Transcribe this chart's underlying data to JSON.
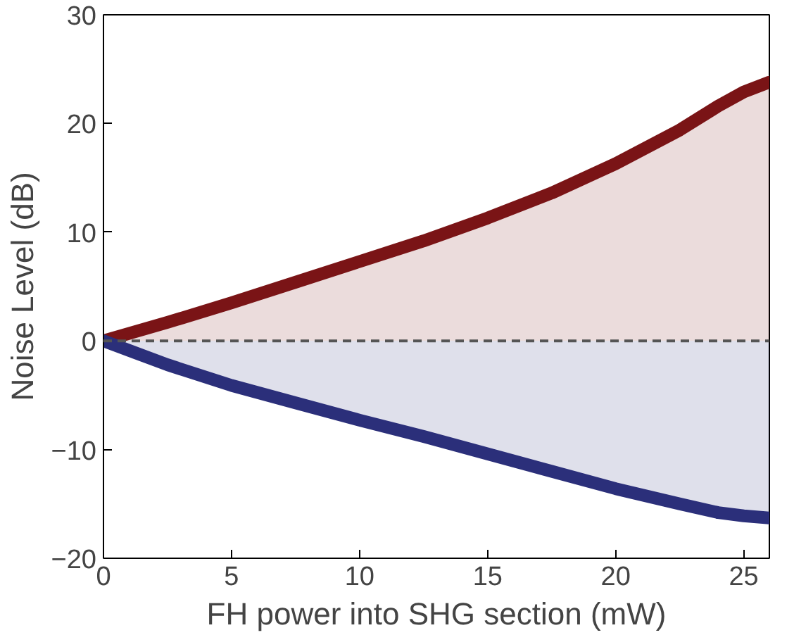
{
  "chart_data": {
    "type": "area",
    "xlabel": "FH power into SHG section (mW)",
    "ylabel": "Noise Level (dB)",
    "x": [
      0,
      2.5,
      5,
      7.5,
      10,
      12.5,
      15,
      17.5,
      20,
      22.5,
      24,
      25,
      26
    ],
    "series": [
      {
        "color": "#7a1416",
        "values": [
          0,
          1.7,
          3.5,
          5.4,
          7.3,
          9.2,
          11.3,
          13.6,
          16.3,
          19.4,
          21.6,
          22.9,
          23.8
        ]
      },
      {
        "color": "#2b2f7a",
        "values": [
          0,
          -2.2,
          -4.1,
          -5.7,
          -7.3,
          -8.8,
          -10.4,
          -12.0,
          -13.6,
          -15.0,
          -15.8,
          -16.1,
          -16.3
        ]
      }
    ],
    "xlim": [
      0,
      26
    ],
    "xticks": [
      0,
      5,
      10,
      15,
      20,
      25
    ],
    "ylim": [
      -20,
      30
    ],
    "yticks": [
      -20,
      -10,
      0,
      10,
      20,
      30
    ],
    "ref_lines": [
      {
        "axis": "y",
        "value": 0,
        "color": "#555555",
        "line_style": "dashed"
      }
    ],
    "grid": false
  }
}
